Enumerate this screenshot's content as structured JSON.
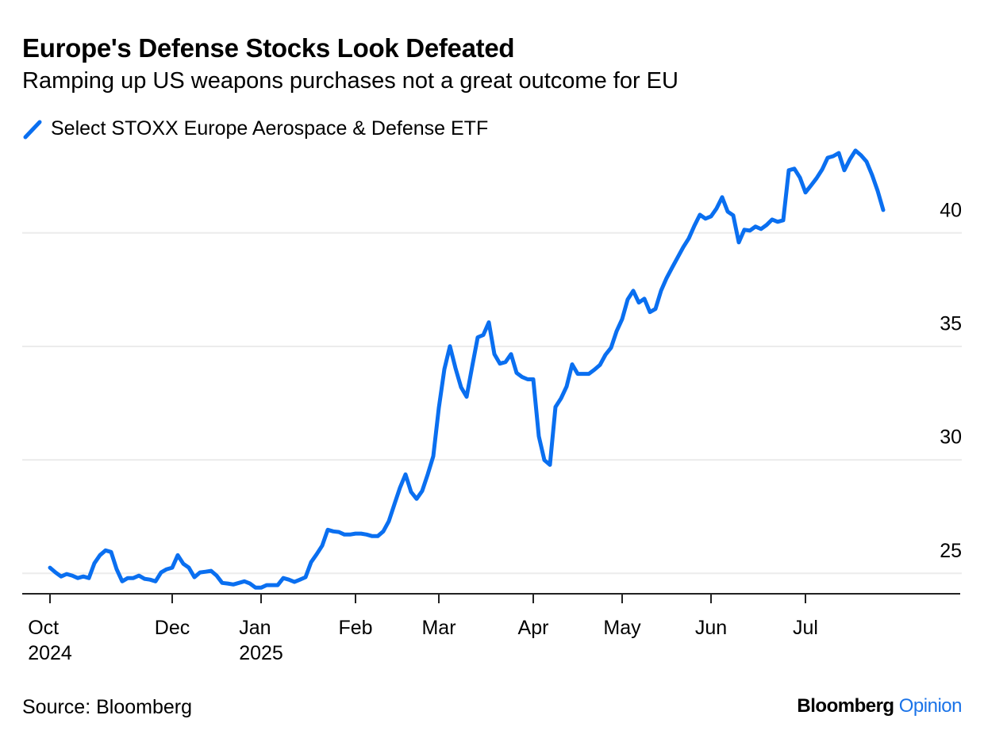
{
  "chart_data": {
    "type": "line",
    "title": "Europe's Defense Stocks Look Defeated",
    "subtitle": "Ramping up US weapons purchases not a great outcome for EU",
    "series": [
      {
        "name": "Select STOXX Europe Aerospace & Defense ETF",
        "color": "#0a6ff0",
        "values": [
          25.25,
          25.04,
          24.86,
          24.97,
          24.9,
          24.79,
          24.86,
          24.79,
          25.45,
          25.8,
          26.01,
          25.94,
          25.18,
          24.65,
          24.79,
          24.79,
          24.9,
          24.76,
          24.72,
          24.65,
          25.04,
          25.18,
          25.25,
          25.8,
          25.42,
          25.25,
          24.83,
          25.04,
          25.07,
          25.11,
          24.9,
          24.58,
          24.55,
          24.51,
          24.58,
          24.65,
          24.55,
          24.37,
          24.37,
          24.48,
          24.48,
          24.48,
          24.79,
          24.72,
          24.62,
          24.72,
          24.83,
          25.49,
          25.84,
          26.22,
          26.92,
          26.85,
          26.82,
          26.71,
          26.71,
          26.75,
          26.75,
          26.71,
          26.64,
          26.64,
          26.85,
          27.3,
          28.04,
          28.77,
          29.36,
          28.59,
          28.28,
          28.63,
          29.36,
          30.16,
          32.29,
          34.0,
          35.01,
          34.04,
          33.2,
          32.78,
          34.11,
          35.4,
          35.5,
          36.06,
          34.66,
          34.24,
          34.31,
          34.66,
          33.83,
          33.65,
          33.55,
          33.55,
          31.04,
          29.99,
          29.78,
          32.33,
          32.71,
          33.23,
          34.21,
          33.79,
          33.79,
          33.79,
          33.97,
          34.18,
          34.63,
          34.94,
          35.67,
          36.2,
          37.07,
          37.45,
          36.93,
          37.1,
          36.51,
          36.65,
          37.45,
          38.01,
          38.47,
          38.92,
          39.37,
          39.76,
          40.31,
          40.8,
          40.63,
          40.73,
          41.08,
          41.57,
          40.94,
          40.77,
          39.58,
          40.14,
          40.1,
          40.28,
          40.17,
          40.35,
          40.59,
          40.49,
          40.56,
          42.76,
          42.83,
          42.44,
          41.78,
          42.09,
          42.41,
          42.79,
          43.31,
          43.38,
          43.52,
          42.76,
          43.24,
          43.63,
          43.42,
          43.14,
          42.55,
          41.85,
          41.01
        ]
      }
    ],
    "xlim": [
      0,
      150
    ],
    "xticks": [
      {
        "value": 0,
        "label": "Oct\n2024"
      },
      {
        "value": 22,
        "label": "Dec"
      },
      {
        "value": 38,
        "label": "Jan\n2025"
      },
      {
        "value": 55,
        "label": "Feb"
      },
      {
        "value": 70,
        "label": "Mar"
      },
      {
        "value": 87,
        "label": "Apr"
      },
      {
        "value": 103,
        "label": "May"
      },
      {
        "value": 119,
        "label": "Jun"
      },
      {
        "value": 136,
        "label": "Jul"
      }
    ],
    "ylim": [
      24.1,
      43.8
    ],
    "yticks": [
      25,
      30,
      35,
      40
    ],
    "grid": true
  },
  "footer": {
    "source": "Source: Bloomberg",
    "brand": "Bloomberg",
    "product": "Opinion"
  }
}
